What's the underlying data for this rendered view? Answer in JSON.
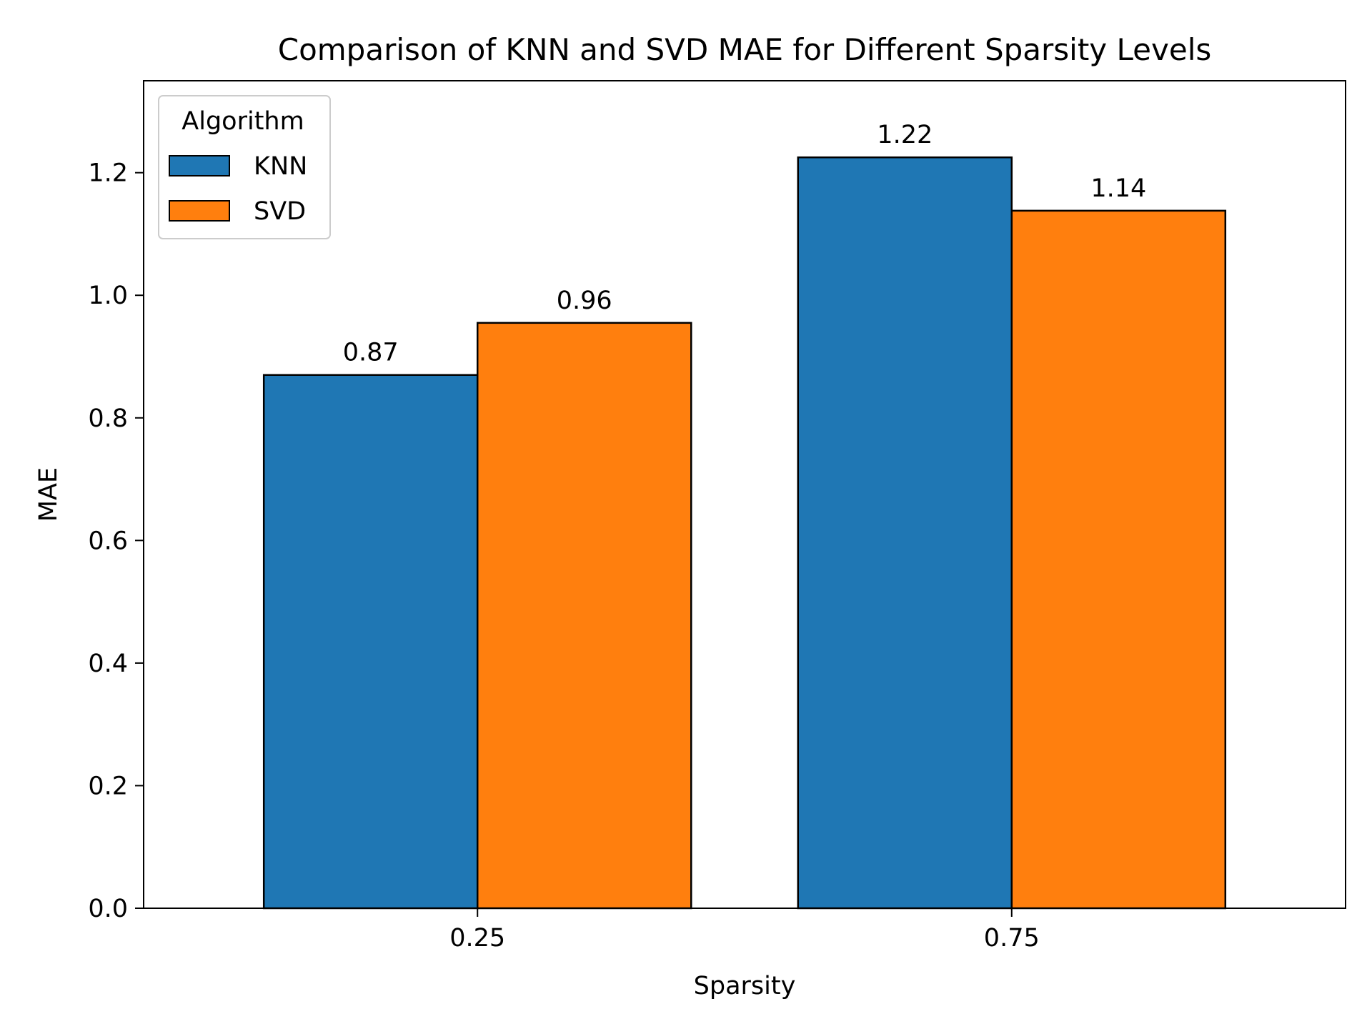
{
  "chart_data": {
    "type": "bar",
    "title": "Comparison of KNN and SVD MAE for Different Sparsity Levels",
    "xlabel": "Sparsity",
    "ylabel": "MAE",
    "categories": [
      "0.25",
      "0.75"
    ],
    "series": [
      {
        "name": "KNN",
        "color": "#1f77b4",
        "values": [
          0.87,
          1.225
        ],
        "labels": [
          "0.87",
          "1.22"
        ]
      },
      {
        "name": "SVD",
        "color": "#ff7f0e",
        "values": [
          0.955,
          1.138
        ],
        "labels": [
          "0.96",
          "1.14"
        ]
      }
    ],
    "ylim": [
      0,
      1.35
    ],
    "yticks": [
      0.0,
      0.2,
      0.4,
      0.6,
      0.8,
      1.0,
      1.2
    ],
    "ytick_labels": [
      "0.0",
      "0.2",
      "0.4",
      "0.6",
      "0.8",
      "1.0",
      "1.2"
    ],
    "grid": false,
    "legend": {
      "title": "Algorithm",
      "placement": "top-left"
    }
  }
}
